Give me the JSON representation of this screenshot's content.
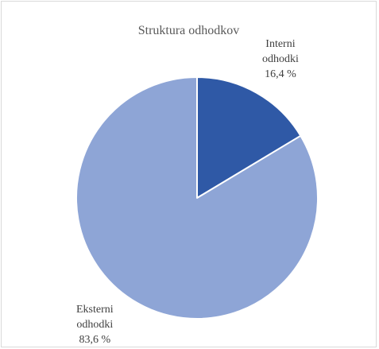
{
  "chart_data": {
    "type": "pie",
    "title": "Struktura odhodkov",
    "slices": [
      {
        "name_lines": [
          "Interni",
          "odhodki"
        ],
        "value_label": "16,4 %",
        "value": 16.4,
        "color": "#2f59a6"
      },
      {
        "name_lines": [
          "Eksterni",
          "odhodki"
        ],
        "value_label": "83,6 %",
        "value": 83.6,
        "color": "#8ea5d6"
      }
    ],
    "start_angle_deg": 0,
    "direction": "clockwise",
    "slice_border_color": "#ffffff"
  }
}
